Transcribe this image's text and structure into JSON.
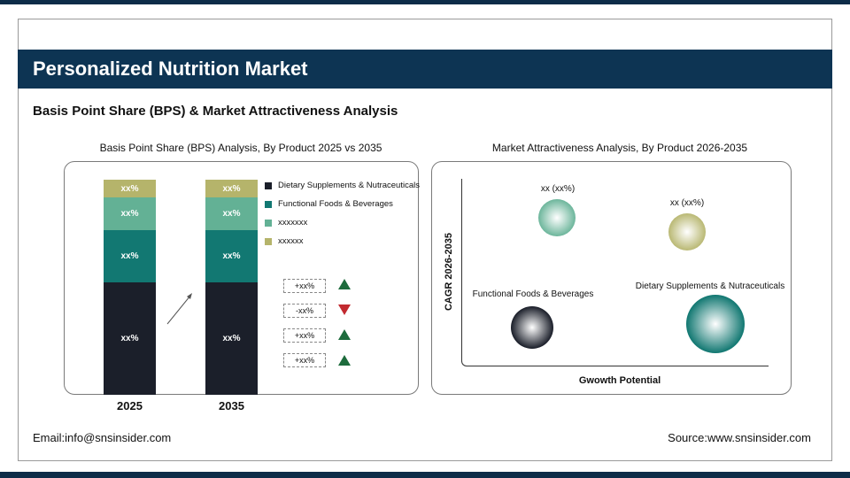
{
  "header": {
    "title": "Personalized Nutrition Market",
    "subtitle": "Basis Point Share (BPS) & Market Attractiveness Analysis"
  },
  "colors": {
    "navy": "#0d3453",
    "dark": "#1b1f2a",
    "teal": "#127872",
    "light_green": "#63b195",
    "olive": "#b5b46b",
    "up": "#1d6b3c",
    "down": "#c22a30"
  },
  "chart_data": [
    {
      "type": "bar",
      "stacked": true,
      "title": "Basis Point Share (BPS) Analysis, By Product 2025 vs 2035",
      "categories": [
        "2025",
        "2035"
      ],
      "series": [
        {
          "name": "Dietary Supplements & Nutraceuticals",
          "labels": [
            "xx%",
            "xx%"
          ],
          "color": "#1b1f2a"
        },
        {
          "name": "Functional Foods & Beverages",
          "labels": [
            "xx%",
            "xx%"
          ],
          "color": "#127872"
        },
        {
          "name": "xxxxxxx",
          "labels": [
            "xx%",
            "xx%"
          ],
          "color": "#63b195"
        },
        {
          "name": "xxxxxx",
          "labels": [
            "xx%",
            "xx%"
          ],
          "color": "#b5b46b"
        }
      ],
      "changes": [
        {
          "label": "+xx%",
          "dir": "up"
        },
        {
          "label": "-xx%",
          "dir": "down"
        },
        {
          "label": "+xx%",
          "dir": "up"
        },
        {
          "label": "+xx%",
          "dir": "up"
        }
      ],
      "legend": "right"
    },
    {
      "type": "scatter",
      "title": "Market Attractiveness Analysis, By Product 2026-2035",
      "xlabel": "Gwowth Potential",
      "ylabel": "CAGR 2026-2035",
      "bubbles": [
        {
          "label": "xx (xx%)",
          "color": "#63b195"
        },
        {
          "label": "xx (xx%)",
          "color": "#b5b46b"
        },
        {
          "label": "Functional Foods & Beverages",
          "color": "#1b1f2a"
        },
        {
          "label": "Dietary Supplements & Nutraceuticals",
          "color": "#127872"
        }
      ]
    }
  ],
  "footer": {
    "email": "Email:info@snsinsider.com",
    "source": "Source:www.snsinsider.com"
  }
}
